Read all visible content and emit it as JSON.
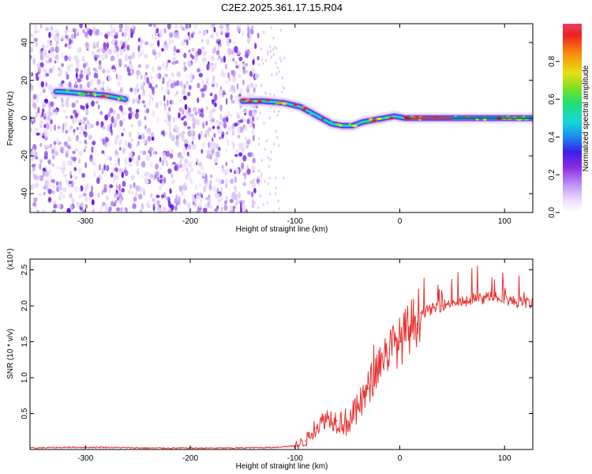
{
  "figure": {
    "title": "C2E2.2025.361.17.15.R04"
  },
  "chart_data": [
    {
      "type": "heatmap",
      "xlabel": "Height of straight line (km)",
      "ylabel": "Frequency (Hz)",
      "xlim": [
        -353,
        127
      ],
      "ylim": [
        -50,
        50
      ],
      "x_ticks": [
        -300,
        -200,
        -100,
        0,
        100
      ],
      "y_ticks": [
        -40,
        -20,
        0,
        20,
        40
      ],
      "colorbar": {
        "label": "Normalized spectral amplitude",
        "range": [
          0,
          1
        ],
        "ticks": [
          0.0,
          0.2,
          0.4,
          0.6,
          0.8
        ]
      },
      "doppler_trace": {
        "x": [
          -325,
          -300,
          -280,
          -262,
          -150,
          -130,
          -110,
          -95,
          -85,
          -75,
          -65,
          -55,
          -45,
          -35,
          -25,
          -15,
          -5,
          5,
          20,
          50,
          80,
          110,
          127
        ],
        "y": [
          14,
          13,
          12,
          10,
          9,
          9,
          8,
          6,
          3,
          0,
          -3,
          -4,
          -4,
          -2,
          -1,
          0,
          1,
          0,
          0,
          0,
          0,
          0,
          0
        ]
      },
      "noise_region_x": [
        -353,
        -135
      ]
    },
    {
      "type": "line",
      "xlabel": "Height of straight line (km)",
      "ylabel": "SNR (10 * v/v)",
      "y_multiplier": "(x10⁴)",
      "xlim": [
        -353,
        127
      ],
      "ylim": [
        0,
        2.65
      ],
      "x_ticks": [
        -300,
        -200,
        -100,
        0,
        100
      ],
      "y_ticks": [
        0.5,
        1.0,
        1.5,
        2.0,
        2.5
      ],
      "series": [
        {
          "color": "#e8312f",
          "x": [
            -353,
            -320,
            -280,
            -240,
            -200,
            -160,
            -120,
            -100,
            -90,
            -80,
            -70,
            -60,
            -50,
            -40,
            -30,
            -20,
            -10,
            0,
            10,
            20,
            30,
            40,
            50,
            60,
            70,
            80,
            90,
            100,
            110,
            120,
            127
          ],
          "y": [
            0.02,
            0.03,
            0.03,
            0.02,
            0.02,
            0.02,
            0.03,
            0.05,
            0.12,
            0.3,
            0.45,
            0.4,
            0.38,
            0.55,
            0.85,
            1.2,
            1.4,
            1.5,
            1.7,
            1.9,
            1.95,
            2.0,
            2.05,
            2.05,
            2.1,
            2.1,
            2.15,
            2.1,
            2.05,
            2.05,
            2.02
          ]
        }
      ]
    }
  ]
}
